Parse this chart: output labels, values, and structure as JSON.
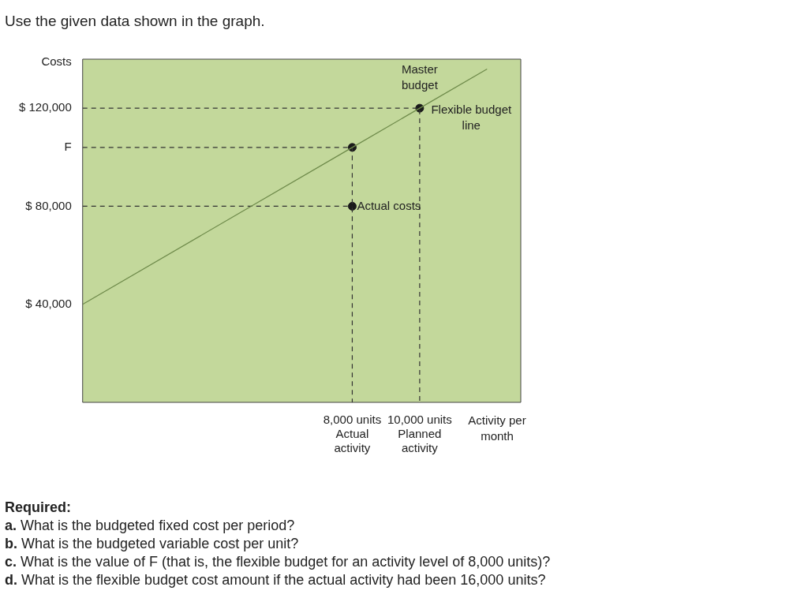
{
  "chart_data": {
    "type": "line",
    "title": "Use the given data shown in the graph.",
    "xlabel": "Activity per month",
    "ylabel": "Costs",
    "xlim": [
      0,
      13000
    ],
    "ylim": [
      0,
      140000
    ],
    "xticks": [
      {
        "value": 8000,
        "label": "8,000 units\nActual\nactivity"
      },
      {
        "value": 10000,
        "label": "10,000 units\nPlanned\nactivity"
      }
    ],
    "yticks": [
      {
        "value": 40000,
        "label": "$ 40,000"
      },
      {
        "value": 80000,
        "label": "$ 80,000"
      },
      {
        "value": 104000,
        "label": "F"
      },
      {
        "value": 120000,
        "label": "$ 120,000"
      }
    ],
    "legend": false,
    "series": [
      {
        "color": "#6e8a4a",
        "x": [
          0,
          8000,
          10000,
          12000
        ],
        "values": [
          40000,
          104000,
          120000,
          136000
        ],
        "marker": "none"
      },
      {
        "type": "line",
        "color": "#333333",
        "x": [
          0,
          10000,
          10000
        ],
        "values": [
          120000,
          120000,
          0
        ],
        "line_style": "dashed",
        "marker": "none"
      },
      {
        "type": "line",
        "color": "#333333",
        "x": [
          0,
          8000,
          8000
        ],
        "values": [
          104000,
          104000,
          0
        ],
        "line_style": "dashed",
        "marker": "none"
      },
      {
        "type": "line",
        "color": "#333333",
        "x": [
          0,
          8000
        ],
        "values": [
          80000,
          80000
        ],
        "line_style": "dashed",
        "marker": "none"
      },
      {
        "type": "scatter",
        "color": "#1a1a1a",
        "x": [
          10000,
          8000,
          8000
        ],
        "values": [
          120000,
          104000,
          80000
        ],
        "marker": "circle"
      }
    ],
    "annotations": [
      {
        "text": "Master budget",
        "x": 10000,
        "y": 120000
      },
      {
        "text": "Flexible budget line",
        "x": 12000,
        "y": 136000
      },
      {
        "text": "Actual costs",
        "x": 8000,
        "y": 80000
      },
      "Required:",
      "a. What is the budgeted fixed cost per period?",
      "b. What is the budgeted variable cost per unit?",
      "c. What is the value of F (that is, the flexible budget for an activity level of 8,000 units)?",
      "d. What is the flexible budget cost amount if the actual activity had been 16,000 units?"
    ]
  }
}
